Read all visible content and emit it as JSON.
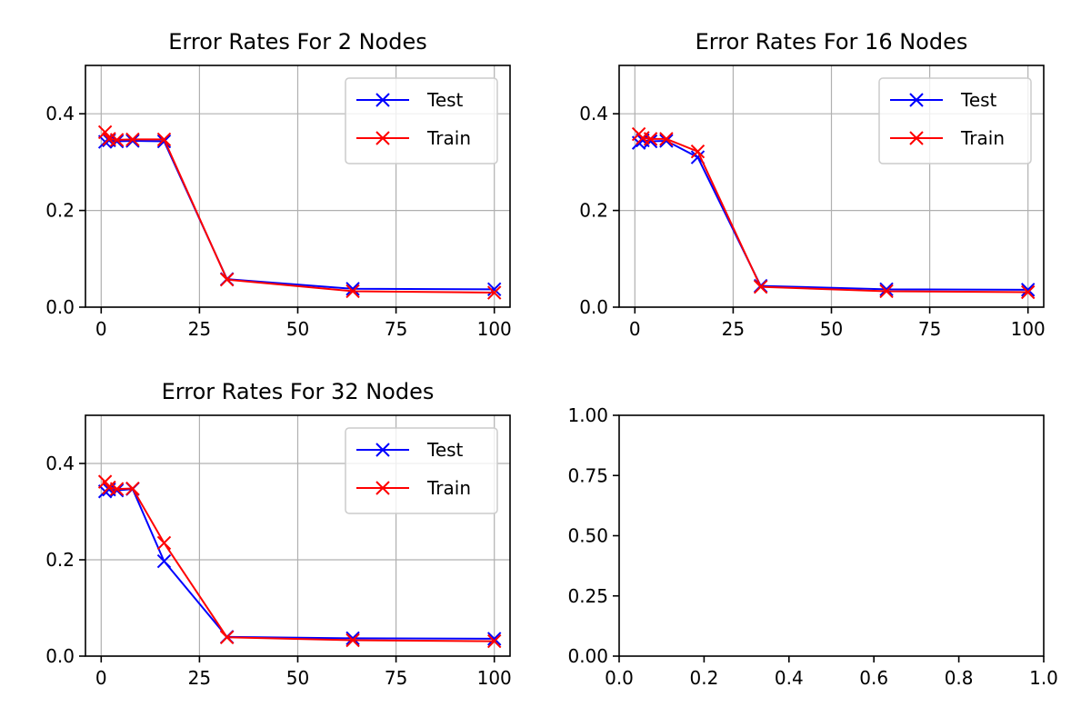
{
  "chart_data": [
    {
      "type": "line",
      "title": "Error Rates For 2 Nodes",
      "xlabel": "",
      "ylabel": "",
      "xlim": [
        -4,
        104
      ],
      "ylim": [
        0,
        0.5
      ],
      "xticks": [
        0,
        25,
        50,
        75,
        100
      ],
      "xtick_labels": [
        "0",
        "25",
        "50",
        "75",
        "100"
      ],
      "yticks": [
        0,
        0.2,
        0.4
      ],
      "ytick_labels": [
        "0.0",
        "0.2",
        "0.4"
      ],
      "grid": true,
      "legend": "top-right",
      "series": [
        {
          "name": "Test",
          "color": "#0000ff",
          "marker": "x",
          "x": [
            1,
            2,
            4,
            8,
            16,
            32,
            64,
            100
          ],
          "y": [
            0.342,
            0.345,
            0.343,
            0.344,
            0.343,
            0.058,
            0.038,
            0.037
          ]
        },
        {
          "name": "Train",
          "color": "#ff0000",
          "marker": "x",
          "x": [
            1,
            2,
            4,
            8,
            16,
            32,
            64,
            100
          ],
          "y": [
            0.362,
            0.348,
            0.346,
            0.347,
            0.347,
            0.057,
            0.033,
            0.03
          ]
        }
      ]
    },
    {
      "type": "line",
      "title": "Error Rates For 16 Nodes",
      "xlabel": "",
      "ylabel": "",
      "xlim": [
        -4,
        104
      ],
      "ylim": [
        0,
        0.5
      ],
      "xticks": [
        0,
        25,
        50,
        75,
        100
      ],
      "xtick_labels": [
        "0",
        "25",
        "50",
        "75",
        "100"
      ],
      "yticks": [
        0,
        0.2,
        0.4
      ],
      "ytick_labels": [
        "0.0",
        "0.2",
        "0.4"
      ],
      "grid": true,
      "legend": "top-right",
      "series": [
        {
          "name": "Test",
          "color": "#0000ff",
          "marker": "x",
          "x": [
            1,
            2,
            4,
            8,
            16,
            32,
            64,
            100
          ],
          "y": [
            0.34,
            0.345,
            0.343,
            0.344,
            0.31,
            0.044,
            0.037,
            0.036
          ]
        },
        {
          "name": "Train",
          "color": "#ff0000",
          "marker": "x",
          "x": [
            1,
            2,
            4,
            8,
            16,
            32,
            64,
            100
          ],
          "y": [
            0.358,
            0.35,
            0.348,
            0.348,
            0.322,
            0.042,
            0.033,
            0.031
          ]
        }
      ]
    },
    {
      "type": "line",
      "title": "Error Rates For 32 Nodes",
      "xlabel": "",
      "ylabel": "",
      "xlim": [
        -4,
        104
      ],
      "ylim": [
        0,
        0.5
      ],
      "xticks": [
        0,
        25,
        50,
        75,
        100
      ],
      "xtick_labels": [
        "0",
        "25",
        "50",
        "75",
        "100"
      ],
      "yticks": [
        0,
        0.2,
        0.4
      ],
      "ytick_labels": [
        "0.0",
        "0.2",
        "0.4"
      ],
      "grid": true,
      "legend": "top-right",
      "series": [
        {
          "name": "Test",
          "color": "#0000ff",
          "marker": "x",
          "x": [
            1,
            2,
            4,
            8,
            16,
            32,
            64,
            100
          ],
          "y": [
            0.342,
            0.346,
            0.344,
            0.347,
            0.197,
            0.04,
            0.037,
            0.036
          ]
        },
        {
          "name": "Train",
          "color": "#ff0000",
          "marker": "x",
          "x": [
            1,
            2,
            4,
            8,
            16,
            32,
            64,
            100
          ],
          "y": [
            0.362,
            0.35,
            0.347,
            0.348,
            0.235,
            0.039,
            0.033,
            0.031
          ]
        }
      ]
    },
    {
      "type": "line",
      "title": "",
      "xlabel": "",
      "ylabel": "",
      "xlim": [
        0,
        1
      ],
      "ylim": [
        0,
        1
      ],
      "xticks": [
        0,
        0.2,
        0.4,
        0.6,
        0.8,
        1.0
      ],
      "xtick_labels": [
        "0.0",
        "0.2",
        "0.4",
        "0.6",
        "0.8",
        "1.0"
      ],
      "yticks": [
        0,
        0.25,
        0.5,
        0.75,
        1.0
      ],
      "ytick_labels": [
        "0.00",
        "0.25",
        "0.50",
        "0.75",
        "1.00"
      ],
      "grid": false,
      "legend": "none",
      "series": []
    }
  ]
}
